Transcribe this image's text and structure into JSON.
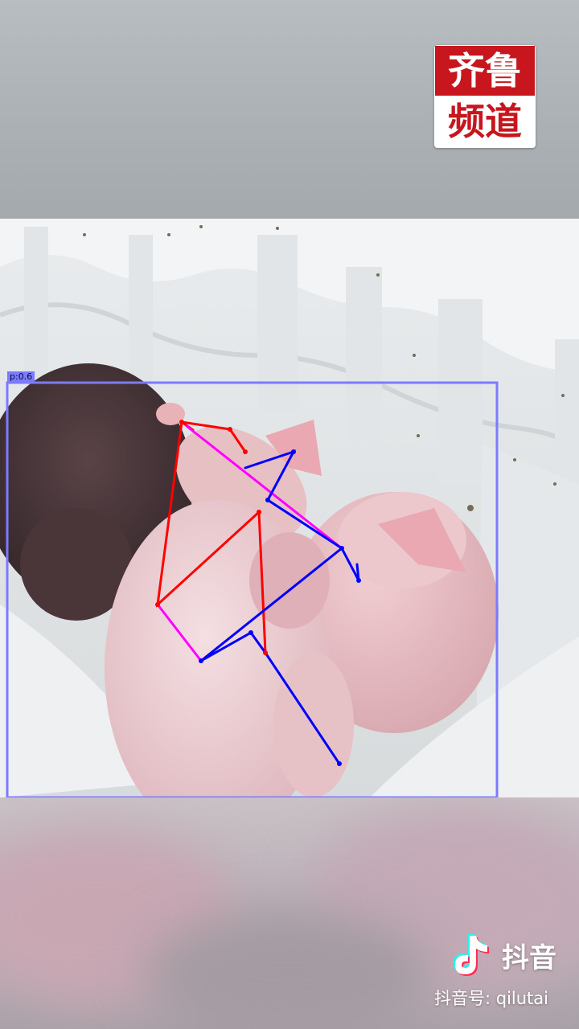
{
  "watermark": {
    "channel_line1": "齐鲁",
    "channel_line2": "频道",
    "brand_colors": {
      "red": "#c7161e",
      "white": "#ffffff"
    }
  },
  "detection": {
    "label": "p:0.6",
    "box_color": "#7b7bff",
    "skeleton_colors": {
      "left": "#ff0000",
      "right": "#0000ff",
      "center": "#ff00ff"
    }
  },
  "platform": {
    "app_name": "抖音",
    "account_id": "抖音号: qilutai",
    "icon": "tiktok-logo-icon"
  }
}
